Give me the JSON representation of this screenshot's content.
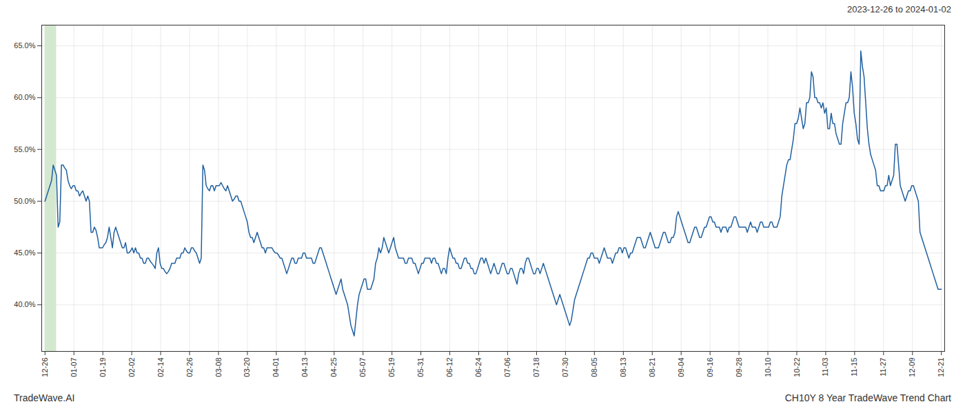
{
  "chart_data": {
    "type": "line",
    "subtitle": "2023-12-26 to 2024-01-02",
    "annotations": [
      "TradeWave.AI",
      "CH10Y 8 Year TradeWave Trend Chart"
    ],
    "color": "#2060a0",
    "grid": true,
    "highlight": {
      "x": [
        0,
        7
      ],
      "color": "#d4e8d0"
    },
    "xlim": [
      -2,
      547
    ],
    "xticks": [
      {
        "value": 0,
        "label": "12-26"
      },
      {
        "value": 17.5806,
        "label": "01-07"
      },
      {
        "value": 35.1613,
        "label": "01-19"
      },
      {
        "value": 52.7419,
        "label": "02-02"
      },
      {
        "value": 70.3226,
        "label": "02-14"
      },
      {
        "value": 87.9032,
        "label": "02-26"
      },
      {
        "value": 105.4839,
        "label": "03-08"
      },
      {
        "value": 123.0645,
        "label": "03-20"
      },
      {
        "value": 140.6452,
        "label": "04-01"
      },
      {
        "value": 158.2258,
        "label": "04-13"
      },
      {
        "value": 175.8065,
        "label": "04-25"
      },
      {
        "value": 193.3871,
        "label": "05-07"
      },
      {
        "value": 210.9677,
        "label": "05-19"
      },
      {
        "value": 228.5484,
        "label": "05-31"
      },
      {
        "value": 246.129,
        "label": "06-12"
      },
      {
        "value": 263.7097,
        "label": "06-24"
      },
      {
        "value": 281.2903,
        "label": "07-06"
      },
      {
        "value": 298.871,
        "label": "07-18"
      },
      {
        "value": 316.4516,
        "label": "07-30"
      },
      {
        "value": 334.0323,
        "label": "08-05"
      },
      {
        "value": 351.6129,
        "label": "08-13"
      },
      {
        "value": 369.1935,
        "label": "08-21"
      },
      {
        "value": 386.7742,
        "label": "09-04"
      },
      {
        "value": 404.3548,
        "label": "09-16"
      },
      {
        "value": 421.9355,
        "label": "09-28"
      },
      {
        "value": 439.5161,
        "label": "10-10"
      },
      {
        "value": 457.0968,
        "label": "10-22"
      },
      {
        "value": 474.6774,
        "label": "11-03"
      },
      {
        "value": 492.2581,
        "label": "11-15"
      },
      {
        "value": 509.8387,
        "label": "11-27"
      },
      {
        "value": 527.4194,
        "label": "12-09"
      },
      {
        "value": 545,
        "label": "12-21"
      }
    ],
    "ylim": [
      35.5,
      67.0
    ],
    "yticks": [
      {
        "value": 40.0,
        "label": "40.0%"
      },
      {
        "value": 45.0,
        "label": "45.0%"
      },
      {
        "value": 50.0,
        "label": "50.0%"
      },
      {
        "value": 55.0,
        "label": "55.0%"
      },
      {
        "value": 60.0,
        "label": "60.0%"
      },
      {
        "value": 65.0,
        "label": "65.0%"
      }
    ],
    "values": [
      50.0,
      50.5,
      51.0,
      51.5,
      52.0,
      53.5,
      53.0,
      52.5,
      47.5,
      48.0,
      53.5,
      53.5,
      53.2,
      53.0,
      52.0,
      51.5,
      51.2,
      51.5,
      51.5,
      51.0,
      51.0,
      50.5,
      50.8,
      51.0,
      50.5,
      50.0,
      50.5,
      50.0,
      47.0,
      47.0,
      47.5,
      47.2,
      46.5,
      45.5,
      45.5,
      45.5,
      45.8,
      46.0,
      46.5,
      47.5,
      46.5,
      45.5,
      47.0,
      47.5,
      47.0,
      46.5,
      46.0,
      45.5,
      45.5,
      46.0,
      45.0,
      45.0,
      45.2,
      45.5,
      45.0,
      45.5,
      45.0,
      45.0,
      44.5,
      44.5,
      44.0,
      44.0,
      44.5,
      44.5,
      44.2,
      44.0,
      43.8,
      43.5,
      45.0,
      45.5,
      44.0,
      43.5,
      43.5,
      43.2,
      43.0,
      43.2,
      43.5,
      44.0,
      44.0,
      44.0,
      44.5,
      44.5,
      44.5,
      45.0,
      45.0,
      45.5,
      45.2,
      45.0,
      45.0,
      45.5,
      45.5,
      45.2,
      45.0,
      44.5,
      44.0,
      44.5,
      53.5,
      53.0,
      51.5,
      51.2,
      51.0,
      51.5,
      51.5,
      51.0,
      51.5,
      51.5,
      51.5,
      51.8,
      51.5,
      51.2,
      51.0,
      51.5,
      51.0,
      50.5,
      50.0,
      50.2,
      50.5,
      50.5,
      50.0,
      50.0,
      49.5,
      49.0,
      48.5,
      48.0,
      47.0,
      46.5,
      46.5,
      46.0,
      46.5,
      47.0,
      46.5,
      46.0,
      45.5,
      45.5,
      45.0,
      45.5,
      45.5,
      45.5,
      45.5,
      45.2,
      45.0,
      45.0,
      44.8,
      44.5,
      44.5,
      44.0,
      43.5,
      43.0,
      43.5,
      44.0,
      44.5,
      44.5,
      44.0,
      44.0,
      44.5,
      44.5,
      44.5,
      45.0,
      45.0,
      44.5,
      44.5,
      44.5,
      44.5,
      44.0,
      44.0,
      44.5,
      45.0,
      45.5,
      45.5,
      45.0,
      44.5,
      44.0,
      43.5,
      43.0,
      42.5,
      42.0,
      41.5,
      41.0,
      41.5,
      42.0,
      42.5,
      41.5,
      41.0,
      40.5,
      40.0,
      39.0,
      38.0,
      37.5,
      37.0,
      38.5,
      40.0,
      41.0,
      41.5,
      42.0,
      42.5,
      42.5,
      41.5,
      41.5,
      41.5,
      42.0,
      42.5,
      44.0,
      44.5,
      45.5,
      45.0,
      45.5,
      46.5,
      46.0,
      45.5,
      45.0,
      45.5,
      46.0,
      46.5,
      45.5,
      45.0,
      44.5,
      44.5,
      44.5,
      44.5,
      44.0,
      44.0,
      44.5,
      44.5,
      44.5,
      44.0,
      44.0,
      43.5,
      43.0,
      43.5,
      44.0,
      44.0,
      44.5,
      44.5,
      44.5,
      44.5,
      44.0,
      44.5,
      44.5,
      44.0,
      44.0,
      43.5,
      43.0,
      43.5,
      43.5,
      43.0,
      44.5,
      45.5,
      45.0,
      44.5,
      44.5,
      44.0,
      44.0,
      43.5,
      43.5,
      44.0,
      44.5,
      44.5,
      44.0,
      44.0,
      43.5,
      43.5,
      43.0,
      43.0,
      43.5,
      44.0,
      44.5,
      44.5,
      44.0,
      44.5,
      44.0,
      43.5,
      43.0,
      43.5,
      44.0,
      43.5,
      43.0,
      43.0,
      43.5,
      44.0,
      44.0,
      43.5,
      43.0,
      43.0,
      43.5,
      43.5,
      43.0,
      42.5,
      42.0,
      43.0,
      43.5,
      43.5,
      43.0,
      44.0,
      44.5,
      44.5,
      44.0,
      43.5,
      43.0,
      43.0,
      43.5,
      43.5,
      43.0,
      43.5,
      44.0,
      43.5,
      43.0,
      42.5,
      42.0,
      41.5,
      41.0,
      40.5,
      40.0,
      40.5,
      41.0,
      40.5,
      40.0,
      39.5,
      39.0,
      38.5,
      38.0,
      38.5,
      39.5,
      40.5,
      41.0,
      41.5,
      42.0,
      42.5,
      43.0,
      43.5,
      44.0,
      44.5,
      44.5,
      45.0,
      45.0,
      44.5,
      44.5,
      44.5,
      44.0,
      44.5,
      45.0,
      45.5,
      45.0,
      44.5,
      44.5,
      44.5,
      44.0,
      44.5,
      45.0,
      45.0,
      45.5,
      45.5,
      45.0,
      45.5,
      45.5,
      45.0,
      44.5,
      45.0,
      45.0,
      45.5,
      46.0,
      46.5,
      46.5,
      46.5,
      46.0,
      45.5,
      45.5,
      46.0,
      46.5,
      47.0,
      46.5,
      46.0,
      45.5,
      45.5,
      45.5,
      46.0,
      46.5,
      47.0,
      47.0,
      46.5,
      46.0,
      46.0,
      46.5,
      46.5,
      47.0,
      48.5,
      49.0,
      48.5,
      48.0,
      47.5,
      47.0,
      46.5,
      46.0,
      46.0,
      46.5,
      47.0,
      47.5,
      47.5,
      47.0,
      46.5,
      46.5,
      47.0,
      47.5,
      47.5,
      48.0,
      48.5,
      48.5,
      48.0,
      48.0,
      47.5,
      47.5,
      47.5,
      47.0,
      47.5,
      47.5,
      47.5,
      47.0,
      47.5,
      47.5,
      48.0,
      48.5,
      48.5,
      48.0,
      47.5,
      47.5,
      47.5,
      47.5,
      47.5,
      47.0,
      47.5,
      48.0,
      47.5,
      47.5,
      47.5,
      47.0,
      47.5,
      48.0,
      48.0,
      47.5,
      47.5,
      47.5,
      47.5,
      48.0,
      48.0,
      47.5,
      47.5,
      47.5,
      48.0,
      48.5,
      50.5,
      51.5,
      52.5,
      53.5,
      54.0,
      54.0,
      55.0,
      56.0,
      57.5,
      57.5,
      58.0,
      59.0,
      58.0,
      57.0,
      57.5,
      59.5,
      59.5,
      60.0,
      62.5,
      62.0,
      60.0,
      60.0,
      59.5,
      59.5,
      59.0,
      59.5,
      58.5,
      59.0,
      57.0,
      57.0,
      58.5,
      57.5,
      57.5,
      56.5,
      56.0,
      55.5,
      55.5,
      57.5,
      58.5,
      59.5,
      59.5,
      60.0,
      62.5,
      61.0,
      58.5,
      57.5,
      56.0,
      55.5,
      64.5,
      63.0,
      62.0,
      59.5,
      57.0,
      55.5,
      54.5,
      54.0,
      53.5,
      53.0,
      51.5,
      51.5,
      51.0,
      51.0,
      51.0,
      51.5,
      51.5,
      52.5,
      51.5,
      52.0,
      52.5,
      55.5,
      55.5,
      53.5,
      51.5,
      51.0,
      50.5,
      50.0,
      50.5,
      51.0,
      51.0,
      51.5,
      51.5,
      51.0,
      50.5,
      50.0,
      47.0,
      46.5,
      46.0,
      45.5,
      45.0,
      44.5,
      44.0,
      43.5,
      43.0,
      42.5,
      42.0,
      41.5,
      41.5,
      41.5
    ]
  }
}
